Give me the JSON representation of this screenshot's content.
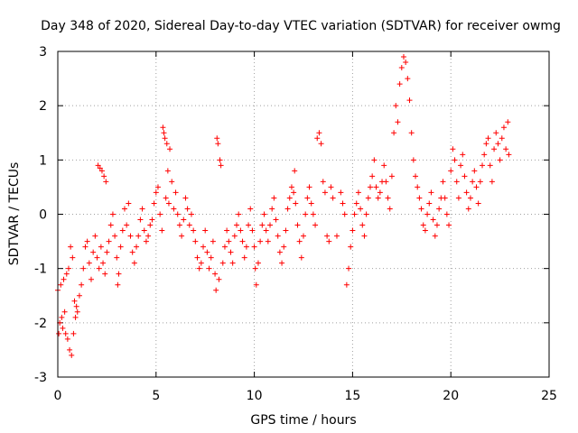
{
  "chart_data": {
    "type": "scatter",
    "title": "Day 348 of 2020, Sidereal Day-to-day VTEC variation (SDTVAR) for receiver owmg",
    "xlabel": "GPS time / hours",
    "ylabel": "SDTVAR / TECUs",
    "xlim": [
      0,
      25
    ],
    "ylim": [
      -3,
      3
    ],
    "xticks": [
      0,
      5,
      10,
      15,
      20,
      25
    ],
    "yticks": [
      -3,
      -2,
      -1,
      0,
      1,
      2,
      3
    ],
    "grid": true,
    "marker": "+",
    "series": [
      {
        "name": "owmg",
        "color": "#ff0000",
        "points": [
          [
            0.0,
            -1.4
          ],
          [
            0.05,
            -2.2
          ],
          [
            0.1,
            -2.0
          ],
          [
            0.15,
            -1.3
          ],
          [
            0.2,
            -1.9
          ],
          [
            0.25,
            -2.1
          ],
          [
            0.3,
            -1.2
          ],
          [
            0.35,
            -1.8
          ],
          [
            0.4,
            -2.2
          ],
          [
            0.45,
            -1.1
          ],
          [
            0.5,
            -2.3
          ],
          [
            0.55,
            -1.0
          ],
          [
            0.6,
            -2.5
          ],
          [
            0.65,
            -0.6
          ],
          [
            0.7,
            -2.6
          ],
          [
            0.75,
            -0.8
          ],
          [
            0.8,
            -2.2
          ],
          [
            0.85,
            -1.6
          ],
          [
            0.9,
            -1.9
          ],
          [
            0.95,
            -1.7
          ],
          [
            1.0,
            -1.8
          ],
          [
            1.1,
            -1.5
          ],
          [
            1.2,
            -1.3
          ],
          [
            1.3,
            -1.0
          ],
          [
            1.4,
            -0.6
          ],
          [
            1.5,
            -0.5
          ],
          [
            1.6,
            -0.9
          ],
          [
            1.7,
            -1.2
          ],
          [
            1.8,
            -0.7
          ],
          [
            1.9,
            -0.4
          ],
          [
            2.0,
            -0.8
          ],
          [
            2.05,
            0.9
          ],
          [
            2.1,
            -1.0
          ],
          [
            2.15,
            0.85
          ],
          [
            2.2,
            -0.6
          ],
          [
            2.25,
            0.8
          ],
          [
            2.3,
            -0.9
          ],
          [
            2.35,
            0.7
          ],
          [
            2.4,
            -1.1
          ],
          [
            2.45,
            0.6
          ],
          [
            2.5,
            -0.7
          ],
          [
            2.6,
            -0.5
          ],
          [
            2.7,
            -0.2
          ],
          [
            2.8,
            0.0
          ],
          [
            2.9,
            -0.4
          ],
          [
            3.0,
            -0.8
          ],
          [
            3.05,
            -1.3
          ],
          [
            3.1,
            -1.1
          ],
          [
            3.2,
            -0.6
          ],
          [
            3.3,
            -0.3
          ],
          [
            3.4,
            0.1
          ],
          [
            3.5,
            -0.2
          ],
          [
            3.6,
            0.2
          ],
          [
            3.7,
            -0.4
          ],
          [
            3.8,
            -0.7
          ],
          [
            3.9,
            -0.9
          ],
          [
            4.0,
            -0.6
          ],
          [
            4.1,
            -0.4
          ],
          [
            4.2,
            -0.1
          ],
          [
            4.3,
            0.1
          ],
          [
            4.4,
            -0.3
          ],
          [
            4.5,
            -0.5
          ],
          [
            4.6,
            -0.4
          ],
          [
            4.7,
            -0.2
          ],
          [
            4.8,
            -0.1
          ],
          [
            4.9,
            0.2
          ],
          [
            5.0,
            0.4
          ],
          [
            5.1,
            0.5
          ],
          [
            5.2,
            0.0
          ],
          [
            5.3,
            -0.3
          ],
          [
            5.35,
            1.6
          ],
          [
            5.4,
            1.5
          ],
          [
            5.45,
            1.4
          ],
          [
            5.5,
            0.3
          ],
          [
            5.55,
            1.3
          ],
          [
            5.6,
            0.8
          ],
          [
            5.65,
            0.2
          ],
          [
            5.7,
            1.2
          ],
          [
            5.8,
            0.6
          ],
          [
            5.9,
            0.1
          ],
          [
            6.0,
            0.4
          ],
          [
            6.1,
            0.0
          ],
          [
            6.2,
            -0.2
          ],
          [
            6.3,
            -0.4
          ],
          [
            6.4,
            -0.1
          ],
          [
            6.5,
            0.3
          ],
          [
            6.6,
            0.1
          ],
          [
            6.7,
            -0.2
          ],
          [
            6.8,
            0.0
          ],
          [
            6.9,
            -0.3
          ],
          [
            7.0,
            -0.5
          ],
          [
            7.1,
            -0.8
          ],
          [
            7.2,
            -1.0
          ],
          [
            7.3,
            -0.9
          ],
          [
            7.4,
            -0.6
          ],
          [
            7.5,
            -0.3
          ],
          [
            7.6,
            -0.7
          ],
          [
            7.7,
            -1.0
          ],
          [
            7.8,
            -0.8
          ],
          [
            7.9,
            -0.5
          ],
          [
            8.0,
            -1.1
          ],
          [
            8.05,
            -1.4
          ],
          [
            8.1,
            1.4
          ],
          [
            8.15,
            1.3
          ],
          [
            8.2,
            -1.2
          ],
          [
            8.25,
            1.0
          ],
          [
            8.3,
            0.9
          ],
          [
            8.4,
            -0.9
          ],
          [
            8.5,
            -0.6
          ],
          [
            8.6,
            -0.3
          ],
          [
            8.7,
            -0.5
          ],
          [
            8.8,
            -0.7
          ],
          [
            8.9,
            -0.9
          ],
          [
            9.0,
            -0.4
          ],
          [
            9.1,
            -0.2
          ],
          [
            9.2,
            0.0
          ],
          [
            9.3,
            -0.3
          ],
          [
            9.4,
            -0.5
          ],
          [
            9.5,
            -0.8
          ],
          [
            9.6,
            -0.6
          ],
          [
            9.7,
            -0.2
          ],
          [
            9.8,
            0.1
          ],
          [
            9.9,
            -0.3
          ],
          [
            10.0,
            -0.6
          ],
          [
            10.05,
            -1.0
          ],
          [
            10.1,
            -1.3
          ],
          [
            10.2,
            -0.9
          ],
          [
            10.3,
            -0.5
          ],
          [
            10.4,
            -0.2
          ],
          [
            10.5,
            0.0
          ],
          [
            10.6,
            -0.3
          ],
          [
            10.7,
            -0.5
          ],
          [
            10.8,
            -0.2
          ],
          [
            10.9,
            0.1
          ],
          [
            11.0,
            0.3
          ],
          [
            11.1,
            -0.1
          ],
          [
            11.2,
            -0.4
          ],
          [
            11.3,
            -0.7
          ],
          [
            11.4,
            -0.9
          ],
          [
            11.5,
            -0.6
          ],
          [
            11.6,
            -0.3
          ],
          [
            11.7,
            0.1
          ],
          [
            11.8,
            0.3
          ],
          [
            11.9,
            0.5
          ],
          [
            12.0,
            0.4
          ],
          [
            12.05,
            0.8
          ],
          [
            12.1,
            0.2
          ],
          [
            12.2,
            -0.2
          ],
          [
            12.3,
            -0.5
          ],
          [
            12.4,
            -0.8
          ],
          [
            12.5,
            -0.4
          ],
          [
            12.6,
            0.0
          ],
          [
            12.7,
            0.3
          ],
          [
            12.8,
            0.5
          ],
          [
            12.9,
            0.2
          ],
          [
            13.0,
            0.0
          ],
          [
            13.1,
            -0.2
          ],
          [
            13.2,
            1.4
          ],
          [
            13.3,
            1.5
          ],
          [
            13.4,
            1.3
          ],
          [
            13.5,
            0.6
          ],
          [
            13.6,
            0.4
          ],
          [
            13.7,
            -0.4
          ],
          [
            13.8,
            -0.5
          ],
          [
            13.9,
            0.5
          ],
          [
            14.0,
            0.3
          ],
          [
            14.2,
            -0.4
          ],
          [
            14.4,
            0.4
          ],
          [
            14.5,
            0.2
          ],
          [
            14.6,
            0.0
          ],
          [
            14.7,
            -1.3
          ],
          [
            14.8,
            -1.0
          ],
          [
            14.9,
            -0.6
          ],
          [
            15.0,
            -0.3
          ],
          [
            15.1,
            0.0
          ],
          [
            15.2,
            0.2
          ],
          [
            15.3,
            0.4
          ],
          [
            15.4,
            0.1
          ],
          [
            15.5,
            -0.2
          ],
          [
            15.6,
            -0.4
          ],
          [
            15.7,
            0.0
          ],
          [
            15.8,
            0.3
          ],
          [
            15.9,
            0.5
          ],
          [
            16.0,
            0.7
          ],
          [
            16.1,
            1.0
          ],
          [
            16.2,
            0.5
          ],
          [
            16.3,
            0.3
          ],
          [
            16.4,
            0.4
          ],
          [
            16.5,
            0.6
          ],
          [
            16.6,
            0.9
          ],
          [
            16.7,
            0.6
          ],
          [
            16.8,
            0.3
          ],
          [
            16.9,
            0.1
          ],
          [
            17.0,
            0.7
          ],
          [
            17.1,
            1.5
          ],
          [
            17.2,
            2.0
          ],
          [
            17.3,
            1.7
          ],
          [
            17.4,
            2.4
          ],
          [
            17.5,
            2.7
          ],
          [
            17.6,
            2.9
          ],
          [
            17.7,
            2.8
          ],
          [
            17.8,
            2.5
          ],
          [
            17.9,
            2.1
          ],
          [
            18.0,
            1.5
          ],
          [
            18.1,
            1.0
          ],
          [
            18.2,
            0.7
          ],
          [
            18.3,
            0.5
          ],
          [
            18.4,
            0.3
          ],
          [
            18.5,
            0.1
          ],
          [
            18.6,
            -0.2
          ],
          [
            18.7,
            -0.3
          ],
          [
            18.8,
            0.0
          ],
          [
            18.9,
            0.2
          ],
          [
            19.0,
            0.4
          ],
          [
            19.1,
            -0.1
          ],
          [
            19.2,
            -0.4
          ],
          [
            19.3,
            -0.2
          ],
          [
            19.4,
            0.1
          ],
          [
            19.5,
            0.3
          ],
          [
            19.6,
            0.6
          ],
          [
            19.7,
            0.3
          ],
          [
            19.8,
            0.0
          ],
          [
            19.9,
            -0.2
          ],
          [
            20.0,
            0.8
          ],
          [
            20.1,
            1.2
          ],
          [
            20.2,
            1.0
          ],
          [
            20.3,
            0.6
          ],
          [
            20.4,
            0.3
          ],
          [
            20.5,
            0.9
          ],
          [
            20.6,
            1.1
          ],
          [
            20.7,
            0.7
          ],
          [
            20.8,
            0.4
          ],
          [
            20.9,
            0.1
          ],
          [
            21.0,
            0.3
          ],
          [
            21.1,
            0.6
          ],
          [
            21.2,
            0.8
          ],
          [
            21.3,
            0.5
          ],
          [
            21.4,
            0.2
          ],
          [
            21.5,
            0.6
          ],
          [
            21.6,
            0.9
          ],
          [
            21.7,
            1.1
          ],
          [
            21.8,
            1.3
          ],
          [
            21.9,
            1.4
          ],
          [
            22.0,
            0.9
          ],
          [
            22.1,
            0.6
          ],
          [
            22.2,
            1.2
          ],
          [
            22.3,
            1.5
          ],
          [
            22.4,
            1.3
          ],
          [
            22.5,
            1.0
          ],
          [
            22.6,
            1.4
          ],
          [
            22.7,
            1.6
          ],
          [
            22.8,
            1.2
          ],
          [
            22.9,
            1.7
          ],
          [
            22.95,
            1.1
          ]
        ]
      }
    ]
  }
}
